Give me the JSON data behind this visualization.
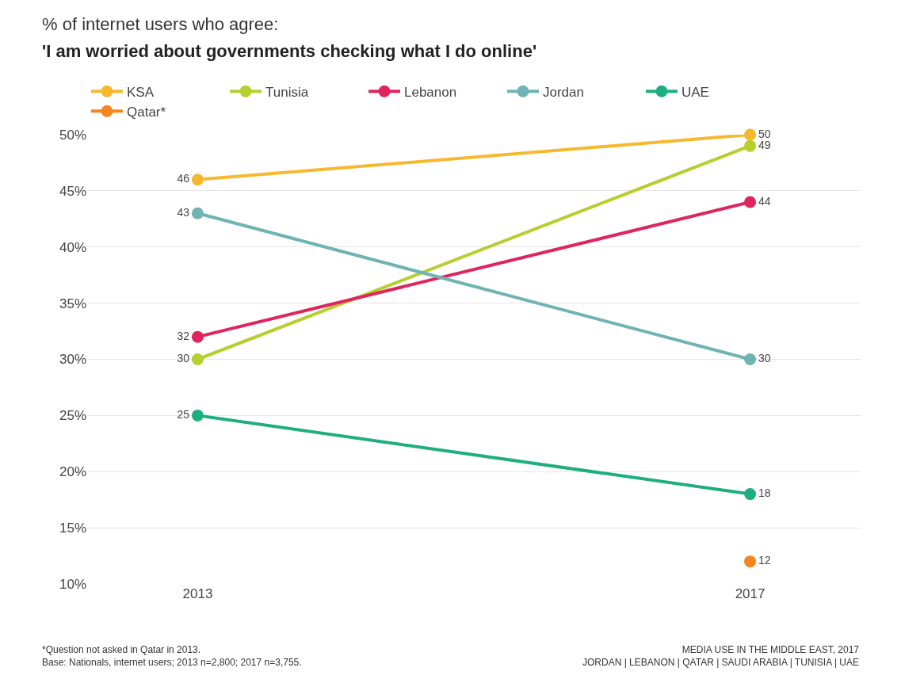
{
  "chart_data": {
    "type": "line",
    "title": "% of internet users who agree:",
    "subtitle": "'I am worried about governments checking what I do online'",
    "categories": [
      "2013",
      "2017"
    ],
    "series": [
      {
        "name": "KSA",
        "color": "#f7b82e",
        "values": [
          46,
          50
        ]
      },
      {
        "name": "Tunisia",
        "color": "#b5cf2d",
        "values": [
          30,
          49
        ]
      },
      {
        "name": "Lebanon",
        "color": "#e0245e",
        "values": [
          32,
          44
        ]
      },
      {
        "name": "Jordan",
        "color": "#6fb3b3",
        "values": [
          43,
          30
        ]
      },
      {
        "name": "UAE",
        "color": "#1fae7f",
        "values": [
          25,
          18
        ]
      },
      {
        "name": "Qatar*",
        "color": "#f5851f",
        "values": [
          null,
          12
        ]
      }
    ],
    "ylim": [
      10,
      50
    ],
    "yticks": [
      {
        "value": 10,
        "label": "10%"
      },
      {
        "value": 15,
        "label": "15%"
      },
      {
        "value": 20,
        "label": "20%"
      },
      {
        "value": 25,
        "label": "25%"
      },
      {
        "value": 30,
        "label": "30%"
      },
      {
        "value": 35,
        "label": "35%"
      },
      {
        "value": 40,
        "label": "40%"
      },
      {
        "value": 45,
        "label": "45%"
      },
      {
        "value": 50,
        "label": "50%"
      }
    ],
    "grid": "y",
    "legend": "top",
    "marker": "circle",
    "line_style": "solid",
    "data_labels": true,
    "annotations": [
      "*Question not asked in Qatar in 2013.\nBase: Nationals, internet users; 2013 n=2,800; 2017 n=3,755.",
      "MEDIA USE IN THE MIDDLE EAST, 2017\nJORDAN | LEBANON | QATAR | SAUDI ARABIA | TUNISIA | UAE"
    ]
  }
}
